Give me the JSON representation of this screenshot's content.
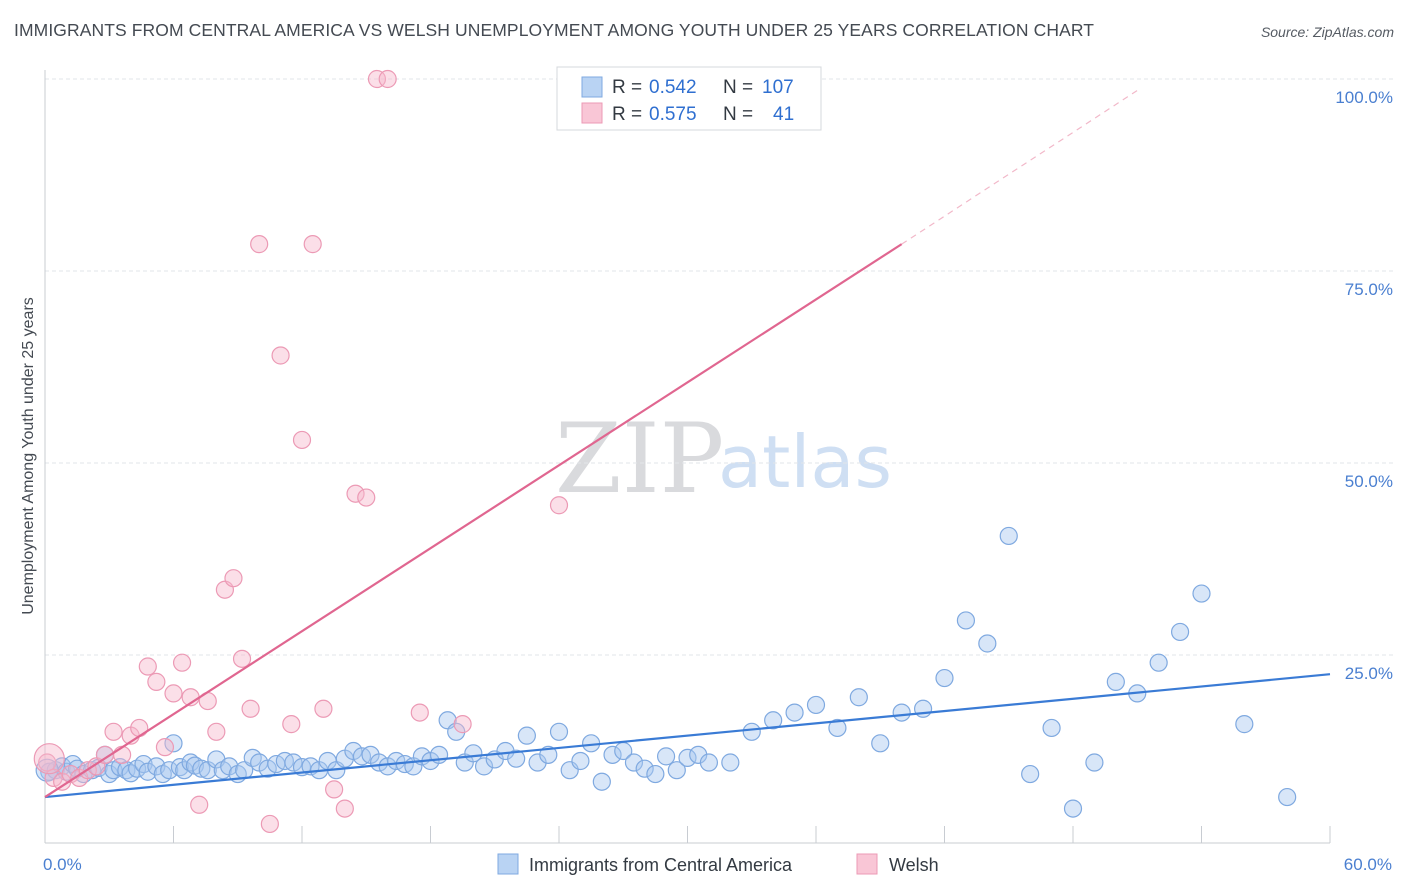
{
  "header": {
    "title": "IMMIGRANTS FROM CENTRAL AMERICA VS WELSH UNEMPLOYMENT AMONG YOUTH UNDER 25 YEARS CORRELATION CHART",
    "source": "Source: ZipAtlas.com"
  },
  "watermark": {
    "zip": "ZIP",
    "atlas": "atlas"
  },
  "legend": {
    "blue": {
      "r_label": "R = ",
      "r_value": "0.542",
      "n_label": "N = ",
      "n_value": "107"
    },
    "pink": {
      "r_label": "R = ",
      "r_value": "0.575",
      "n_label": "N = ",
      "n_value": "41"
    }
  },
  "bottom_legend": {
    "blue_label": "Immigrants from Central America",
    "pink_label": "Welsh"
  },
  "chart_data": {
    "type": "scatter",
    "title": "IMMIGRANTS FROM CENTRAL AMERICA VS WELSH UNEMPLOYMENT AMONG YOUTH UNDER 25 YEARS CORRELATION CHART",
    "xlabel": "",
    "ylabel": "Unemployment Among Youth under 25 years",
    "xlim": [
      0,
      60
    ],
    "ylim": [
      0,
      100
    ],
    "x_tick_labels": [
      "0.0%",
      "60.0%"
    ],
    "y_ticks": [
      25,
      50,
      75,
      100
    ],
    "y_tick_labels": [
      "25.0%",
      "50.0%",
      "75.0%",
      "100.0%"
    ],
    "grid": true,
    "legend_position": "top-center",
    "colors": {
      "blue": "#a8c8f0",
      "blue_line": "#3a7bd5",
      "pink": "#f6b8cb",
      "pink_line": "#e06690"
    },
    "series": [
      {
        "name": "Immigrants from Central America",
        "color": "blue",
        "trend": {
          "x": [
            0,
            60
          ],
          "y": [
            6.5,
            22.5
          ]
        },
        "x": [
          0.2,
          0.5,
          0.8,
          1.0,
          1.3,
          1.5,
          1.8,
          2.2,
          2.5,
          2.8,
          3.0,
          3.2,
          3.5,
          3.8,
          4.0,
          4.3,
          4.6,
          4.8,
          5.2,
          5.5,
          5.8,
          6.0,
          6.3,
          6.5,
          6.8,
          7.0,
          7.3,
          7.6,
          8.0,
          8.3,
          8.6,
          9.0,
          9.3,
          9.7,
          10.0,
          10.4,
          10.8,
          11.2,
          11.6,
          12.0,
          12.4,
          12.8,
          13.2,
          13.6,
          14.0,
          14.4,
          14.8,
          15.2,
          15.6,
          16.0,
          16.4,
          16.8,
          17.2,
          17.6,
          18.0,
          18.4,
          18.8,
          19.2,
          19.6,
          20.0,
          20.5,
          21.0,
          21.5,
          22.0,
          22.5,
          23.0,
          23.5,
          24.0,
          24.5,
          25.0,
          25.5,
          26.0,
          26.5,
          27.0,
          27.5,
          28.0,
          28.5,
          29.0,
          29.5,
          30.0,
          30.5,
          31.0,
          32.0,
          33.0,
          34.0,
          35.0,
          36.0,
          37.0,
          38.0,
          39.0,
          40.0,
          41.0,
          42.0,
          43.0,
          44.0,
          45.0,
          46.0,
          47.0,
          48.0,
          49.0,
          50.0,
          51.0,
          52.0,
          53.0,
          54.0,
          56.0,
          58.0
        ],
        "y": [
          9.8,
          10.0,
          10.5,
          9.8,
          10.8,
          10.2,
          9.5,
          10.0,
          10.3,
          12.0,
          9.5,
          10.0,
          10.4,
          10.0,
          9.6,
          10.2,
          10.8,
          9.8,
          10.5,
          9.5,
          10.0,
          13.5,
          10.4,
          10.0,
          11.0,
          10.6,
          10.2,
          10.0,
          11.4,
          10.0,
          10.5,
          9.5,
          10.0,
          11.6,
          11.0,
          10.2,
          10.8,
          11.2,
          11.0,
          10.4,
          10.5,
          10.0,
          11.2,
          10.0,
          11.5,
          12.5,
          11.8,
          12.0,
          11.0,
          10.5,
          11.2,
          10.8,
          10.5,
          11.8,
          11.2,
          12.0,
          16.5,
          15.0,
          11.0,
          12.2,
          10.5,
          11.4,
          12.5,
          11.5,
          14.5,
          11.0,
          12.0,
          15.0,
          10.0,
          11.2,
          13.5,
          8.5,
          12.0,
          12.5,
          11.0,
          10.2,
          9.5,
          11.8,
          10.0,
          11.6,
          12.0,
          11.0,
          11.0,
          15.0,
          16.5,
          17.5,
          18.5,
          15.5,
          19.5,
          13.5,
          17.5,
          18.0,
          22.0,
          29.5,
          26.5,
          40.5,
          9.5,
          15.5,
          5.0,
          11.0,
          21.5,
          20.0,
          24.0,
          28.0,
          33.0,
          16.0,
          6.5
        ]
      },
      {
        "name": "Welsh",
        "color": "pink",
        "trend": {
          "x": [
            0,
            40
          ],
          "y": [
            6.5,
            78.5
          ]
        },
        "trend_dashed": {
          "x": [
            40,
            51
          ],
          "y": [
            78.5,
            98.5
          ]
        },
        "x": [
          0.1,
          0.4,
          0.8,
          1.2,
          1.6,
          2.0,
          2.4,
          2.8,
          3.2,
          3.6,
          4.0,
          4.4,
          4.8,
          5.2,
          5.6,
          6.0,
          6.4,
          6.8,
          7.2,
          7.6,
          8.0,
          8.4,
          8.8,
          9.2,
          9.6,
          10.0,
          10.5,
          11.0,
          11.5,
          12.0,
          12.5,
          13.0,
          13.5,
          14.0,
          14.5,
          15.0,
          15.5,
          16.0,
          17.5,
          19.5,
          24.0
        ],
        "y": [
          11.0,
          9.0,
          8.5,
          9.5,
          9.0,
          10.0,
          10.5,
          12.0,
          15.0,
          12.0,
          14.5,
          15.5,
          23.5,
          21.5,
          13.0,
          20.0,
          24.0,
          19.5,
          5.5,
          19.0,
          15.0,
          33.5,
          35.0,
          24.5,
          18.0,
          78.5,
          3.0,
          64.0,
          16.0,
          53.0,
          78.5,
          18.0,
          7.5,
          5.0,
          46.0,
          45.5,
          100.0,
          100.0,
          17.5,
          16.0,
          44.5
        ]
      }
    ]
  }
}
